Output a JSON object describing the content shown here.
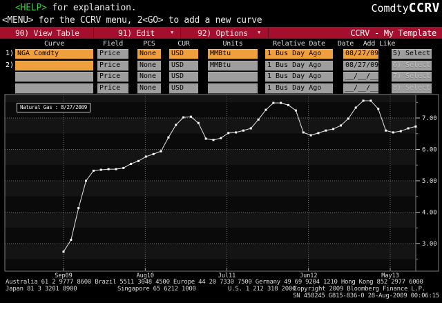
{
  "header": {
    "help_tag": "<HELP>",
    "help_rest": " for explanation.",
    "menu_line": "<MENU> for the CCRV menu, 2<GO> to add a new curve",
    "brand_prefix": "Comdty",
    "brand_function": "CCRV"
  },
  "menu_bar": {
    "view_table": "90) View Table",
    "edit": "91) Edit",
    "options": "92) Options",
    "template_name": "CCRV - My Template",
    "bar_color": "#a50f2e"
  },
  "table": {
    "headers": [
      "Curve",
      "Field",
      "PCS",
      "CUR",
      "Units",
      "Relative Date",
      "Date",
      "Add Like"
    ],
    "amber_color": "#efa03d",
    "gray_color": "#9e9e9e",
    "rows": [
      {
        "num": "1)",
        "curve": "NGA Comdty",
        "field": "Price",
        "pcs": "None",
        "cur": "USD",
        "units": "MMBtu",
        "rel_date": "1 Bus Day Ago",
        "date": "08/27/09",
        "select": "5) Select"
      },
      {
        "num": "2)",
        "curve": "",
        "field": "Price",
        "pcs": "None",
        "cur": "USD",
        "units": "MMBtu",
        "rel_date": "1 Bus Day Ago",
        "date": "08/27/09",
        "select": "6) Select"
      },
      {
        "num": "",
        "curve": "",
        "field": "Price",
        "pcs": "None",
        "cur": "USD",
        "units": "",
        "rel_date": "1 Bus Day Ago",
        "date": "__/__/__",
        "select": "7) Select"
      },
      {
        "num": "",
        "curve": "",
        "field": "Price",
        "pcs": "None",
        "cur": "USD",
        "units": "",
        "rel_date": "1 Bus Day Ago",
        "date": "__/__/__",
        "select": "8) Select"
      }
    ]
  },
  "chart_data": {
    "type": "line",
    "legend_label": "Natural Gas : 8/27/2009",
    "x_tick_labels": [
      "Sep09",
      "Aug10",
      "Jul11",
      "Jun12",
      "May13"
    ],
    "y_tick_labels": [
      "7.00",
      "6.00",
      "5.00",
      "4.00",
      "3.00"
    ],
    "y_ticks": [
      7,
      6,
      5,
      4,
      3
    ],
    "ylim": [
      2.2,
      7.8
    ],
    "grid": true,
    "legend_position": "top-left",
    "line_color": "#d4d4d4",
    "marker_color": "#ffffff",
    "values": [
      2.74,
      3.12,
      4.13,
      5.0,
      5.32,
      5.35,
      5.37,
      5.37,
      5.41,
      5.54,
      5.63,
      5.77,
      5.85,
      5.94,
      6.38,
      6.78,
      7.02,
      7.04,
      6.84,
      6.34,
      6.3,
      6.36,
      6.52,
      6.54,
      6.6,
      6.67,
      6.95,
      7.26,
      7.48,
      7.48,
      7.41,
      7.24,
      6.54,
      6.45,
      6.52,
      6.6,
      6.65,
      6.76,
      6.98,
      7.33,
      7.55,
      7.55,
      7.29,
      6.6,
      6.54,
      6.58,
      6.67,
      6.73
    ]
  },
  "footer": {
    "line1": "Australia 61 2 9777 8600 Brazil 5511 3048 4500 Europe 44 20 7330 7500 Germany 49 69 9204 1210 Hong Kong 852 2977 6000",
    "japan": "Japan 81 3 3201 8900",
    "singapore": "Singapore 65 6212 1000",
    "us": "U.S. 1 212 318 2000",
    "copyright": "Copyright 2009 Bloomberg Finance L.P.",
    "serial": "SN 458245 G815-836-0 28-Aug-2009 00:06:15"
  }
}
